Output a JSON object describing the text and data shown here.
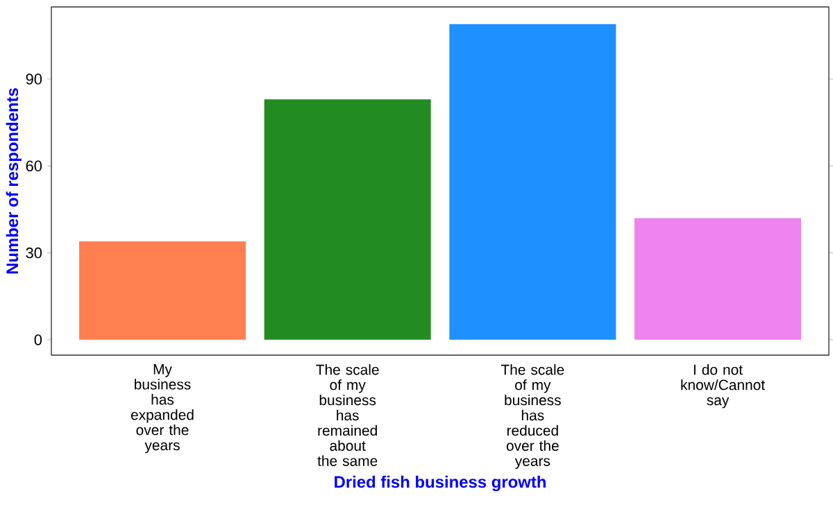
{
  "chart_data": {
    "type": "bar",
    "xlabel": "Dried fish business growth",
    "ylabel": "Number of respondents",
    "categories": [
      "My business has expanded over the years",
      "The scale of my business has remained about the same",
      "The scale of my business has reduced over the years",
      "I do not know/Cannot say"
    ],
    "values": [
      34,
      83,
      109,
      42
    ],
    "colors": [
      "#ff7f50",
      "#228b22",
      "#1e90ff",
      "#ee82ee"
    ],
    "ylim": [
      -5.3,
      114.9
    ],
    "yticks": [
      0,
      30,
      60,
      90
    ],
    "grid": false
  }
}
